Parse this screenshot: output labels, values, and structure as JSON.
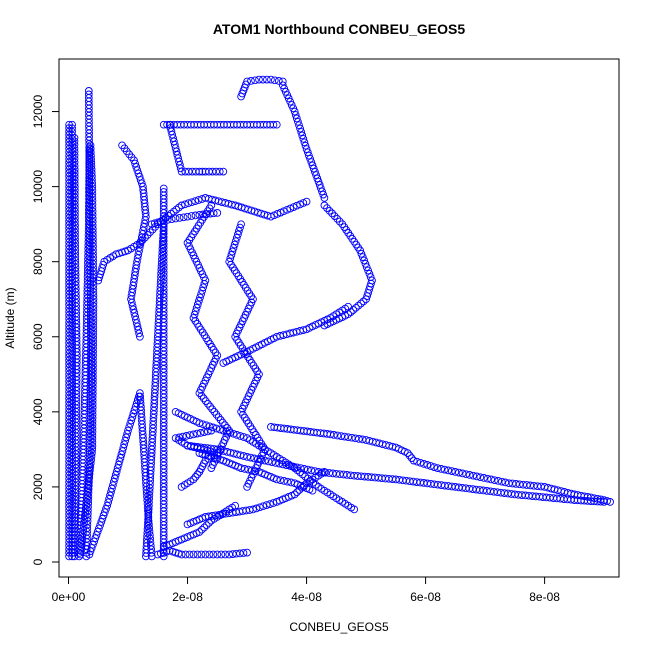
{
  "chart_data": {
    "type": "scatter",
    "title": "ATOM1 Northbound CONBEU_GEOS5",
    "xlabel": "CONBEU_GEOS5",
    "ylabel": "Altitude (m)",
    "xlim": [
      -1.6e-09,
      9.25e-08
    ],
    "ylim": [
      -400,
      13400
    ],
    "x_ticks": [
      {
        "value": 0,
        "label": "0e+00"
      },
      {
        "value": 2e-08,
        "label": "2e-08"
      },
      {
        "value": 4e-08,
        "label": "4e-08"
      },
      {
        "value": 6e-08,
        "label": "6e-08"
      },
      {
        "value": 8e-08,
        "label": "8e-08"
      }
    ],
    "y_ticks": [
      {
        "value": 0,
        "label": "0"
      },
      {
        "value": 2000,
        "label": "2000"
      },
      {
        "value": 4000,
        "label": "4000"
      },
      {
        "value": 6000,
        "label": "6000"
      },
      {
        "value": 8000,
        "label": "8000"
      },
      {
        "value": 10000,
        "label": "10000"
      },
      {
        "value": 12000,
        "label": "12000"
      }
    ],
    "grid": false,
    "legend": "none",
    "marker": "open-circle",
    "color": "#0000ff",
    "series": [
      {
        "x": [
          1e-10,
          1e-10,
          1e-10,
          1e-10,
          1e-10,
          1e-10
        ],
        "y": [
          150,
          2500,
          5000,
          7500,
          10000,
          11650
        ]
      },
      {
        "x": [
          6e-10,
          6e-10,
          6e-10,
          6e-10,
          6e-10
        ],
        "y": [
          150,
          3000,
          6000,
          9000,
          11650
        ]
      },
      {
        "x": [
          1e-09,
          1.2e-09,
          1.4e-09,
          1.1e-09,
          1e-09
        ],
        "y": [
          150,
          2500,
          5500,
          8500,
          11300
        ]
      },
      {
        "x": [
          1.8e-09,
          2.5e-09,
          3e-09,
          3.4e-09,
          3.5e-09
        ],
        "y": [
          150,
          3000,
          6000,
          9000,
          11000
        ]
      },
      {
        "x": [
          3e-09,
          3.5e-09,
          3.8e-09,
          3.6e-09,
          3.4e-09
        ],
        "y": [
          150,
          2500,
          5000,
          8500,
          12550
        ]
      },
      {
        "x": [
          2e-09,
          4e-09,
          4.2e-09,
          4e-09,
          3.7e-09
        ],
        "y": [
          200,
          3000,
          7000,
          10000,
          11100
        ]
      },
      {
        "x": [
          3.5e-09,
          6.5e-09,
          1e-08,
          1.2e-08,
          1.35e-08,
          1.4e-08
        ],
        "y": [
          200,
          1500,
          3500,
          4500,
          1000,
          150
        ]
      },
      {
        "x": [
          1.3e-08,
          1.35e-08,
          1.4e-08,
          1.45e-08,
          1.5e-08,
          1.55e-08,
          1.6e-08
        ],
        "y": [
          150,
          1500,
          3000,
          4500,
          6000,
          7500,
          9000
        ]
      },
      {
        "x": [
          1.6e-08,
          1.6e-08,
          1.6e-08,
          1.6e-08,
          1.6e-08,
          1.6e-08
        ],
        "y": [
          150,
          2000,
          4000,
          6000,
          8000,
          9950
        ]
      },
      {
        "x": [
          1.5e-08,
          1.7e-08,
          1.9e-08,
          2.1e-08,
          2.3e-08,
          2.5e-08,
          2.7e-08,
          3e-08
        ],
        "y": [
          200,
          300,
          200,
          200,
          200,
          200,
          200,
          250
        ]
      },
      {
        "x": [
          5e-09,
          6e-09,
          8e-09,
          1e-08,
          1.2e-08,
          1.5e-08,
          1.9e-08,
          2.3e-08,
          2.8e-08,
          3.4e-08,
          4e-08
        ],
        "y": [
          7500,
          8000,
          8200,
          8300,
          8500,
          9000,
          9500,
          9700,
          9500,
          9200,
          9600
        ]
      },
      {
        "x": [
          1.4e-08,
          1.6e-08,
          1.8e-08,
          2e-08,
          2.2e-08,
          2.5e-08
        ],
        "y": [
          9000,
          9100,
          9150,
          9200,
          9250,
          9300
        ]
      },
      {
        "x": [
          1.6e-08,
          2e-08,
          2.5e-08,
          3e-08,
          3.5e-08
        ],
        "y": [
          11650,
          11650,
          11650,
          11650,
          11650
        ]
      },
      {
        "x": [
          2.9e-08,
          3e-08,
          3.2e-08,
          3.4e-08,
          3.6e-08
        ],
        "y": [
          12400,
          12800,
          12850,
          12850,
          12800
        ]
      },
      {
        "x": [
          3.6e-08,
          3.8e-08,
          4e-08,
          4.3e-08
        ],
        "y": [
          12700,
          12000,
          11000,
          9700
        ]
      },
      {
        "x": [
          4.3e-08,
          4.6e-08,
          4.9e-08,
          5.1e-08,
          5e-08,
          4.7e-08,
          4.3e-08
        ],
        "y": [
          9500,
          9000,
          8300,
          7500,
          7000,
          6600,
          6300
        ]
      },
      {
        "x": [
          2.4e-08,
          2e-08,
          2.3e-08,
          2.1e-08,
          2.5e-08,
          2.2e-08,
          2.7e-08,
          2.4e-08
        ],
        "y": [
          9500,
          8500,
          7500,
          6500,
          5500,
          4500,
          3500,
          2500
        ]
      },
      {
        "x": [
          2.9e-08,
          2.7e-08,
          3.1e-08,
          2.8e-08,
          3.2e-08,
          2.9e-08,
          3.3e-08,
          3e-08
        ],
        "y": [
          9000,
          8000,
          7000,
          6000,
          5000,
          4000,
          3000,
          2000
        ]
      },
      {
        "x": [
          1.8e-08,
          2.2e-08,
          2.6e-08,
          3e-08,
          3.4e-08,
          3.8e-08,
          4.2e-08,
          4.8e-08
        ],
        "y": [
          4000,
          3700,
          3500,
          3300,
          2900,
          2500,
          2000,
          1400
        ]
      },
      {
        "x": [
          3.4e-08,
          3.9e-08,
          4.4e-08,
          5e-08,
          5.5e-08,
          5.7e-08,
          5.8e-08,
          6.2e-08,
          6.8e-08,
          7.4e-08,
          8e-08,
          8.5e-08,
          9e-08,
          9.1e-08
        ],
        "y": [
          3600,
          3500,
          3400,
          3250,
          3050,
          2900,
          2700,
          2500,
          2300,
          2100,
          2000,
          1800,
          1650,
          1600
        ]
      },
      {
        "x": [
          2e-08,
          2.5e-08,
          3e-08,
          3.6e-08,
          4.2e-08,
          4.8e-08,
          5.5e-08,
          6.5e-08,
          7.5e-08,
          8.5e-08,
          9e-08
        ],
        "y": [
          3100,
          3000,
          2800,
          2600,
          2400,
          2300,
          2200,
          2000,
          1800,
          1650,
          1600
        ]
      },
      {
        "x": [
          9e-09,
          1.1e-08,
          1.25e-08,
          1.3e-08,
          1.15e-08,
          1.05e-08,
          1.2e-08
        ],
        "y": [
          11100,
          10700,
          10000,
          9200,
          8000,
          7000,
          6000
        ]
      },
      {
        "x": [
          1.7e-08,
          1.9e-08,
          2.2e-08,
          2.3e-08,
          2.6e-08
        ],
        "y": [
          11650,
          10400,
          10400,
          10400,
          10400
        ]
      },
      {
        "x": [
          2.6e-08,
          3e-08,
          3.5e-08,
          4e-08,
          4.4e-08,
          4.7e-08
        ],
        "y": [
          5300,
          5600,
          6000,
          6200,
          6500,
          6800
        ]
      },
      {
        "x": [
          1.9e-08,
          2.1e-08,
          2.2e-08,
          2.3e-08,
          2.5e-08,
          2e-08,
          1.8e-08,
          2.4e-08
        ],
        "y": [
          2000,
          2200,
          2400,
          2700,
          2900,
          3100,
          3300,
          3500
        ]
      },
      {
        "x": [
          2e-08,
          2.3e-08,
          2.7e-08,
          3.1e-08,
          3.5e-08,
          3.8e-08,
          4e-08,
          4.3e-08
        ],
        "y": [
          1000,
          1200,
          1300,
          1400,
          1600,
          1800,
          2100,
          2400
        ]
      },
      {
        "x": [
          1.6e-08,
          1.9e-08,
          2.2e-08,
          2.4e-08,
          2.6e-08,
          2.8e-08
        ],
        "y": [
          400,
          600,
          800,
          1100,
          1300,
          1500
        ]
      },
      {
        "x": [
          2.2e-08,
          2.4e-08,
          2.6e-08,
          2.9e-08,
          3.2e-08,
          3.5e-08,
          3.8e-08,
          4.1e-08
        ],
        "y": [
          2900,
          2800,
          2700,
          2500,
          2400,
          2200,
          2100,
          1900
        ]
      }
    ]
  }
}
